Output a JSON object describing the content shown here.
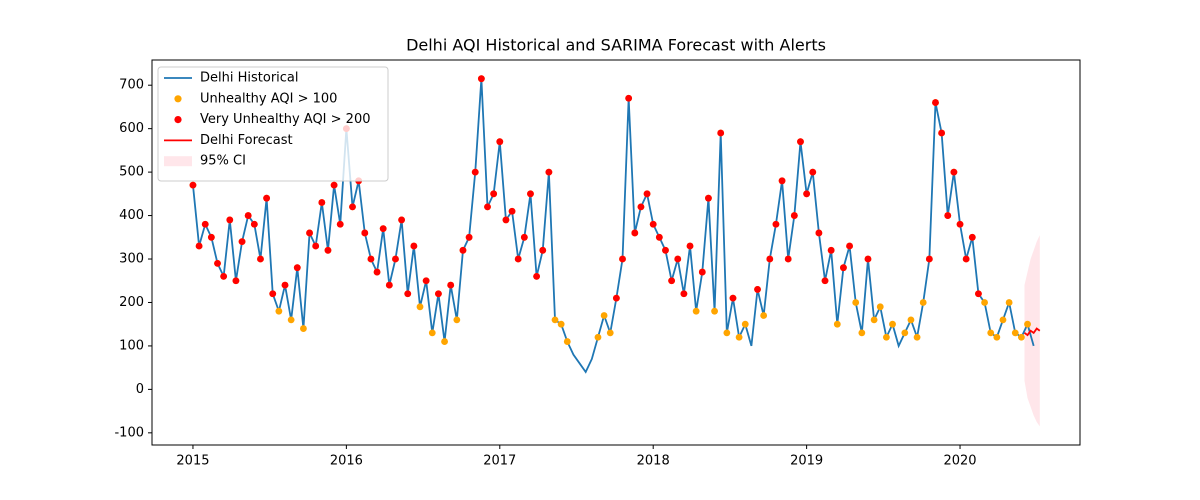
{
  "chart_data": {
    "type": "line",
    "title": "Delhi AQI Historical and SARIMA Forecast with Alerts",
    "xlim": [
      2014.733,
      2020.782
    ],
    "xticks": [
      2015,
      2016,
      2017,
      2018,
      2019,
      2020
    ],
    "ylim": [
      -128,
      758
    ],
    "yticks": [
      -100,
      0,
      100,
      200,
      300,
      400,
      500,
      600,
      700
    ],
    "grid": false,
    "legend": "upper left",
    "series": [
      {
        "name": "Delhi Historical",
        "type": "line",
        "color": "#1f77b4",
        "x": [
          2015,
          2015.04,
          2015.08,
          2015.12,
          2015.16,
          2015.2,
          2015.24,
          2015.28,
          2015.32,
          2015.36,
          2015.4,
          2015.44,
          2015.48,
          2015.52,
          2015.56,
          2015.6,
          2015.64,
          2015.68,
          2015.72,
          2015.76,
          2015.8,
          2015.84,
          2015.88,
          2015.92,
          2015.96,
          2016,
          2016.04,
          2016.08,
          2016.12,
          2016.16,
          2016.2,
          2016.24,
          2016.28,
          2016.32,
          2016.36,
          2016.4,
          2016.44,
          2016.48,
          2016.52,
          2016.56,
          2016.6,
          2016.64,
          2016.68,
          2016.72,
          2016.76,
          2016.8,
          2016.84,
          2016.88,
          2016.92,
          2016.96,
          2017,
          2017.04,
          2017.08,
          2017.12,
          2017.16,
          2017.2,
          2017.24,
          2017.28,
          2017.32,
          2017.36,
          2017.4,
          2017.44,
          2017.48,
          2017.52,
          2017.56,
          2017.6,
          2017.64,
          2017.68,
          2017.72,
          2017.76,
          2017.8,
          2017.84,
          2017.88,
          2017.92,
          2017.96,
          2018,
          2018.04,
          2018.08,
          2018.12,
          2018.16,
          2018.2,
          2018.24,
          2018.28,
          2018.32,
          2018.36,
          2018.4,
          2018.44,
          2018.48,
          2018.52,
          2018.56,
          2018.6,
          2018.64,
          2018.68,
          2018.72,
          2018.76,
          2018.8,
          2018.84,
          2018.88,
          2018.92,
          2018.96,
          2019,
          2019.04,
          2019.08,
          2019.12,
          2019.16,
          2019.2,
          2019.24,
          2019.28,
          2019.32,
          2019.36,
          2019.4,
          2019.44,
          2019.48,
          2019.52,
          2019.56,
          2019.6,
          2019.64,
          2019.68,
          2019.72,
          2019.76,
          2019.8,
          2019.84,
          2019.88,
          2019.92,
          2019.96,
          2020,
          2020.04,
          2020.08,
          2020.12,
          2020.16,
          2020.2,
          2020.24,
          2020.28,
          2020.32,
          2020.36,
          2020.4,
          2020.44,
          2020.48
        ],
        "values": [
          470,
          330,
          380,
          350,
          290,
          260,
          390,
          250,
          340,
          400,
          380,
          300,
          440,
          220,
          180,
          240,
          160,
          280,
          140,
          360,
          330,
          430,
          320,
          470,
          380,
          600,
          420,
          480,
          360,
          300,
          270,
          370,
          240,
          300,
          390,
          220,
          330,
          190,
          250,
          130,
          220,
          110,
          240,
          160,
          320,
          350,
          500,
          715,
          420,
          450,
          570,
          390,
          410,
          300,
          350,
          450,
          260,
          320,
          500,
          160,
          150,
          110,
          80,
          60,
          40,
          70,
          120,
          170,
          130,
          210,
          300,
          670,
          360,
          420,
          450,
          380,
          350,
          320,
          250,
          300,
          220,
          330,
          180,
          270,
          440,
          180,
          590,
          130,
          210,
          120,
          150,
          100,
          230,
          170,
          300,
          380,
          480,
          300,
          400,
          570,
          450,
          500,
          360,
          250,
          320,
          150,
          280,
          330,
          200,
          130,
          300,
          160,
          190,
          120,
          150,
          100,
          130,
          160,
          120,
          200,
          300,
          660,
          590,
          400,
          500,
          380,
          300,
          350,
          220,
          200,
          130,
          120,
          160,
          200,
          130,
          120,
          150,
          100
        ]
      },
      {
        "name": "Unhealthy AQI > 100",
        "type": "scatter",
        "color": "orange",
        "threshold": 100
      },
      {
        "name": "Very Unhealthy AQI > 200",
        "type": "scatter",
        "color": "red",
        "threshold": 200
      },
      {
        "name": "Delhi Forecast",
        "type": "line",
        "color": "red",
        "x": [
          2020.42,
          2020.44,
          2020.46,
          2020.48,
          2020.5,
          2020.52
        ],
        "values": [
          130,
          125,
          135,
          130,
          140,
          135
        ]
      },
      {
        "name": "95% CI",
        "type": "band",
        "color": "pink",
        "x": [
          2020.42,
          2020.44,
          2020.46,
          2020.48,
          2020.5,
          2020.52
        ],
        "lower": [
          20,
          -20,
          -40,
          -60,
          -75,
          -85
        ],
        "upper": [
          240,
          270,
          300,
          320,
          340,
          355
        ]
      }
    ]
  }
}
